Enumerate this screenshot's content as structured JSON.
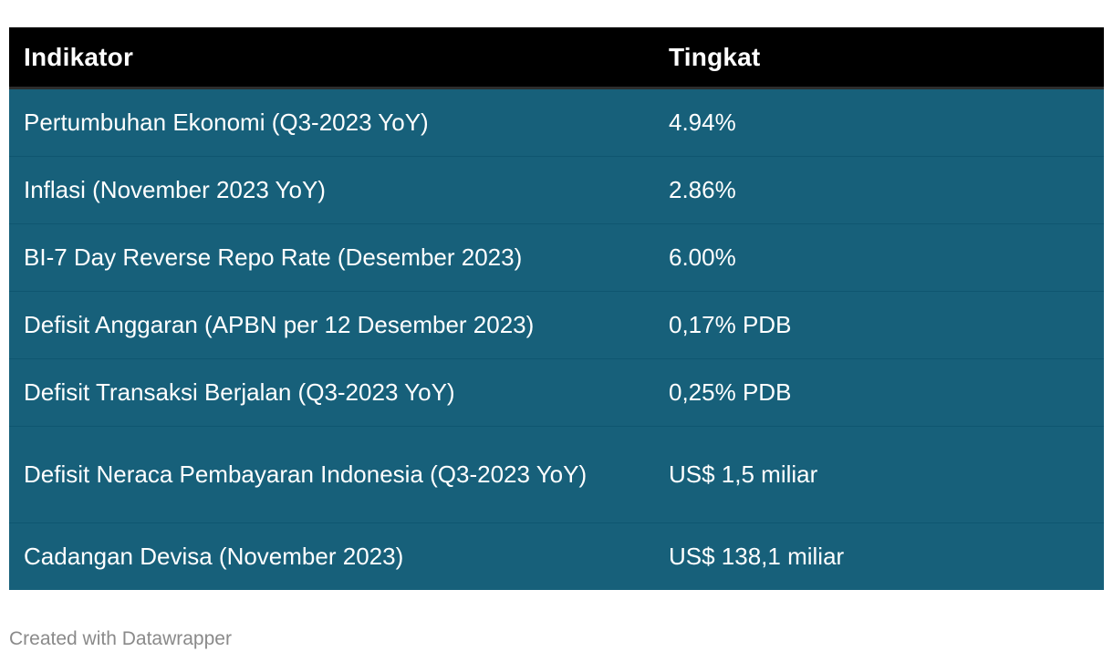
{
  "chart_data": {
    "type": "table",
    "columns": [
      "Indikator",
      "Tingkat"
    ],
    "rows": [
      {
        "indikator": "Pertumbuhan Ekonomi (Q3-2023 YoY)",
        "tingkat": "4.94%"
      },
      {
        "indikator": "Inflasi (November 2023 YoY)",
        "tingkat": "2.86%"
      },
      {
        "indikator": "BI-7 Day Reverse Repo Rate (Desember 2023)",
        "tingkat": "6.00%"
      },
      {
        "indikator": "Defisit Anggaran (APBN per 12 Desember 2023)",
        "tingkat": "0,17% PDB"
      },
      {
        "indikator": "Defisit Transaksi Berjalan (Q3-2023 YoY)",
        "tingkat": "0,25% PDB"
      },
      {
        "indikator": "Defisit Neraca Pembayaran Indonesia (Q3-2023 YoY)",
        "tingkat": "US$ 1,5 miliar"
      },
      {
        "indikator": "Cadangan Devisa (November 2023)",
        "tingkat": "US$ 138,1 miliar"
      }
    ]
  },
  "footer": {
    "credit": "Created with Datawrapper"
  },
  "colors": {
    "header_bg": "#000000",
    "row_bg": "#17607a",
    "text": "#ffffff",
    "credit": "#8a8a8a"
  }
}
